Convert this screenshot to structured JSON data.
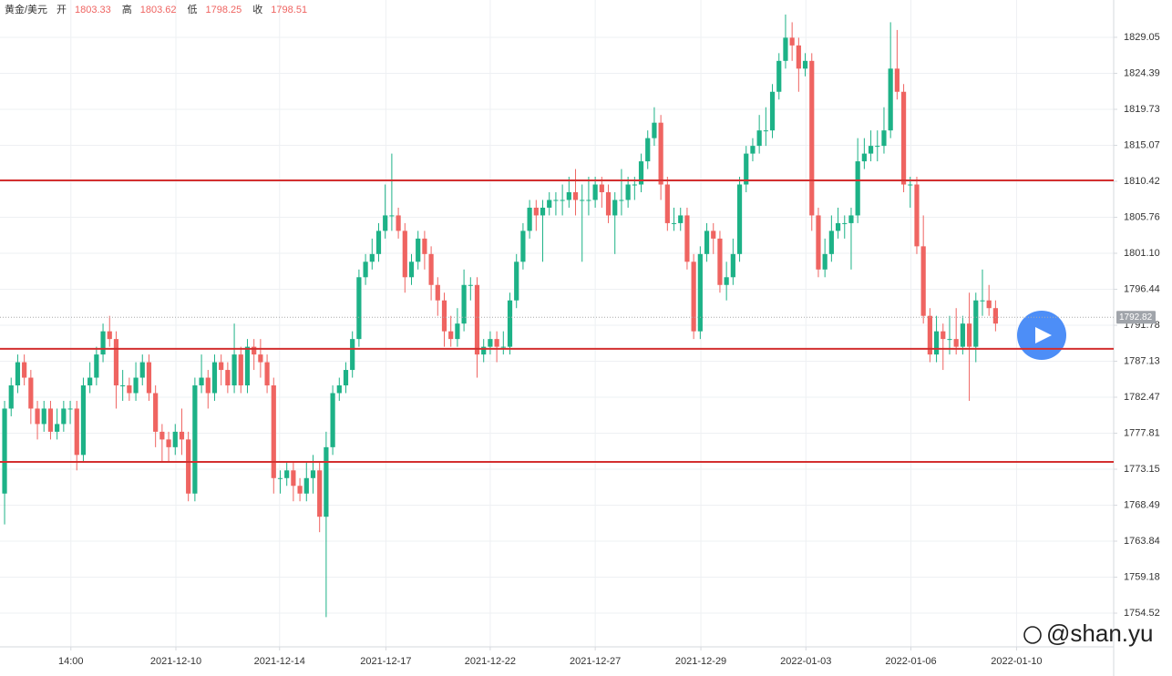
{
  "chart_data": {
    "type": "candlestick",
    "symbol": "黄金/美元",
    "header": [
      {
        "label": "开",
        "value": 1803.33
      },
      {
        "label": "高",
        "value": 1803.62
      },
      {
        "label": "低",
        "value": 1798.25
      },
      {
        "label": "收",
        "value": 1798.51
      }
    ],
    "up_color": "#1db287",
    "down_color": "#ef6461",
    "open": [
      1770,
      1781,
      1784,
      1787,
      1785,
      1781,
      1779,
      1781,
      1778,
      1779,
      1781,
      1781,
      1775,
      1784,
      1785,
      1788,
      1791,
      1790,
      1784,
      1784,
      1783,
      1785,
      1787,
      1783,
      1778,
      1777,
      1776,
      1778,
      1777,
      1770,
      1784,
      1785,
      1783,
      1787,
      1786,
      1784,
      1788,
      1784,
      1789,
      1788,
      1787,
      1784,
      1772,
      1772,
      1773,
      1771,
      1770,
      1772,
      1773,
      1767,
      1776,
      1783,
      1784,
      1786,
      1790,
      1798,
      1800,
      1801,
      1804,
      1806,
      1806,
      1804,
      1798,
      1800,
      1803,
      1801,
      1797,
      1795,
      1791,
      1790,
      1792,
      1797,
      1797,
      1788,
      1789,
      1790,
      1789,
      1789,
      1795,
      1800,
      1804,
      1807,
      1806,
      1807,
      1808,
      1808,
      1808,
      1809,
      1808,
      1808,
      1808,
      1810,
      1809,
      1806,
      1808,
      1808,
      1810,
      1810,
      1813,
      1816,
      1818,
      1810,
      1805,
      1805,
      1806,
      1800,
      1791,
      1801,
      1804,
      1803,
      1797,
      1798,
      1801,
      1810,
      1814,
      1815,
      1817,
      1817,
      1822,
      1826,
      1829,
      1828,
      1825,
      1826,
      1806,
      1799,
      1801,
      1804,
      1805,
      1805,
      1806,
      1813,
      1814,
      1815,
      1815,
      1817,
      1825,
      1822,
      1810,
      1810,
      1802,
      1793,
      1788,
      1791,
      1790,
      1790,
      1789,
      1792,
      1789,
      1795,
      1795,
      1794
    ],
    "high": [
      1782,
      1785,
      1788,
      1788,
      1786,
      1782,
      1782,
      1782,
      1781,
      1782,
      1782,
      1782,
      1785,
      1787,
      1789,
      1792,
      1793,
      1791,
      1786,
      1785,
      1787,
      1788,
      1788,
      1784,
      1779,
      1778,
      1779,
      1781,
      1778,
      1785,
      1788,
      1786,
      1788,
      1788,
      1787,
      1792,
      1789,
      1790,
      1790,
      1790,
      1788,
      1785,
      1773,
      1774,
      1774,
      1772,
      1774,
      1775,
      1774,
      1778,
      1784,
      1785,
      1787,
      1791,
      1799,
      1801,
      1803,
      1805,
      1810,
      1814,
      1807,
      1805,
      1801,
      1804,
      1804,
      1802,
      1798,
      1796,
      1793,
      1794,
      1799,
      1798,
      1798,
      1790,
      1791,
      1791,
      1791,
      1796,
      1801,
      1805,
      1808,
      1808,
      1808,
      1809,
      1809,
      1810,
      1811,
      1812,
      1810,
      1811,
      1811,
      1811,
      1810,
      1809,
      1812,
      1811,
      1811,
      1814,
      1817,
      1820,
      1819,
      1811,
      1807,
      1807,
      1807,
      1801,
      1802,
      1805,
      1805,
      1804,
      1800,
      1803,
      1811,
      1815,
      1816,
      1819,
      1820,
      1823,
      1827,
      1832,
      1831,
      1829,
      1827,
      1827,
      1807,
      1803,
      1806,
      1807,
      1806,
      1807,
      1816,
      1816,
      1817,
      1817,
      1820,
      1831,
      1830,
      1823,
      1811,
      1811,
      1806,
      1794,
      1793,
      1792,
      1793,
      1794,
      1793,
      1796,
      1796,
      1799,
      1797,
      1795
    ],
    "low": [
      1766,
      1780,
      1783,
      1784,
      1779,
      1777,
      1778,
      1777,
      1777,
      1778,
      1779,
      1773,
      1774,
      1783,
      1784,
      1787,
      1789,
      1781,
      1782,
      1782,
      1782,
      1784,
      1782,
      1776,
      1774,
      1774,
      1775,
      1775,
      1769,
      1769,
      1783,
      1781,
      1782,
      1784,
      1783,
      1783,
      1783,
      1783,
      1786,
      1785,
      1783,
      1770,
      1770,
      1771,
      1769,
      1769,
      1769,
      1770,
      1765,
      1754,
      1775,
      1782,
      1783,
      1785,
      1789,
      1797,
      1799,
      1800,
      1803,
      1804,
      1803,
      1796,
      1797,
      1799,
      1799,
      1795,
      1793,
      1789,
      1789,
      1789,
      1791,
      1795,
      1785,
      1787,
      1788,
      1787,
      1788,
      1788,
      1794,
      1799,
      1803,
      1804,
      1800,
      1806,
      1806,
      1806,
      1807,
      1806,
      1800,
      1806,
      1807,
      1807,
      1805,
      1801,
      1806,
      1807,
      1808,
      1809,
      1812,
      1815,
      1808,
      1804,
      1804,
      1804,
      1799,
      1790,
      1790,
      1800,
      1801,
      1796,
      1795,
      1797,
      1800,
      1809,
      1813,
      1814,
      1815,
      1816,
      1821,
      1825,
      1826,
      1822,
      1824,
      1804,
      1798,
      1798,
      1800,
      1803,
      1803,
      1799,
      1805,
      1812,
      1813,
      1813,
      1814,
      1816,
      1821,
      1809,
      1807,
      1801,
      1792,
      1787,
      1787,
      1786,
      1788,
      1788,
      1788,
      1782,
      1787,
      1793,
      1793,
      1791
    ],
    "close": [
      1781,
      1784,
      1787,
      1785,
      1781,
      1779,
      1781,
      1778,
      1779,
      1781,
      1781,
      1775,
      1784,
      1785,
      1788,
      1791,
      1790,
      1784,
      1784,
      1783,
      1785,
      1787,
      1783,
      1778,
      1777,
      1776,
      1778,
      1777,
      1770,
      1784,
      1785,
      1783,
      1787,
      1786,
      1784,
      1788,
      1784,
      1789,
      1788,
      1787,
      1784,
      1772,
      1772,
      1773,
      1771,
      1770,
      1772,
      1773,
      1767,
      1776,
      1783,
      1784,
      1786,
      1790,
      1798,
      1800,
      1801,
      1804,
      1806,
      1806,
      1804,
      1798,
      1800,
      1803,
      1801,
      1797,
      1795,
      1791,
      1790,
      1792,
      1797,
      1797,
      1788,
      1789,
      1790,
      1789,
      1789,
      1795,
      1800,
      1804,
      1807,
      1806,
      1807,
      1808,
      1808,
      1808,
      1809,
      1808,
      1808,
      1808,
      1810,
      1809,
      1806,
      1808,
      1808,
      1810,
      1810,
      1813,
      1816,
      1818,
      1810,
      1805,
      1805,
      1806,
      1800,
      1791,
      1801,
      1804,
      1803,
      1797,
      1798,
      1801,
      1810,
      1814,
      1815,
      1817,
      1817,
      1822,
      1826,
      1829,
      1828,
      1825,
      1826,
      1806,
      1799,
      1801,
      1804,
      1805,
      1805,
      1806,
      1813,
      1814,
      1815,
      1815,
      1817,
      1825,
      1822,
      1810,
      1810,
      1802,
      1793,
      1788,
      1791,
      1790,
      1790,
      1789,
      1792,
      1789,
      1795,
      1795,
      1794,
      1792
    ],
    "xlim": [
      -0.7,
      169
    ],
    "xticks": [
      {
        "value": 10.1,
        "label": "14:00"
      },
      {
        "value": 26.1,
        "label": "2021-12-10"
      },
      {
        "value": 41.9,
        "label": "2021-12-14"
      },
      {
        "value": 58.1,
        "label": "2021-12-17"
      },
      {
        "value": 74.0,
        "label": "2021-12-22"
      },
      {
        "value": 90.0,
        "label": "2021-12-27"
      },
      {
        "value": 106.1,
        "label": "2021-12-29"
      },
      {
        "value": 122.1,
        "label": "2022-01-03"
      },
      {
        "value": 138.1,
        "label": "2022-01-06"
      },
      {
        "value": 154.2,
        "label": "2022-01-10"
      }
    ],
    "ylim": [
      1750.16,
      1833.88
    ],
    "yticks": [
      1829.05,
      1824.39,
      1819.73,
      1815.07,
      1810.42,
      1805.76,
      {
        "value": 1801.1,
        "label": "1801.10"
      },
      1796.44,
      1791.78,
      1787.13,
      1782.47,
      1777.81,
      1773.15,
      1768.49,
      1763.84,
      1759.18,
      1754.52
    ],
    "grid": true,
    "levels": [
      1810.54,
      1788.73,
      1774.1
    ],
    "level_color": "#d32f2f",
    "last_price": 1792.82,
    "watermark": "@shan.yu"
  }
}
